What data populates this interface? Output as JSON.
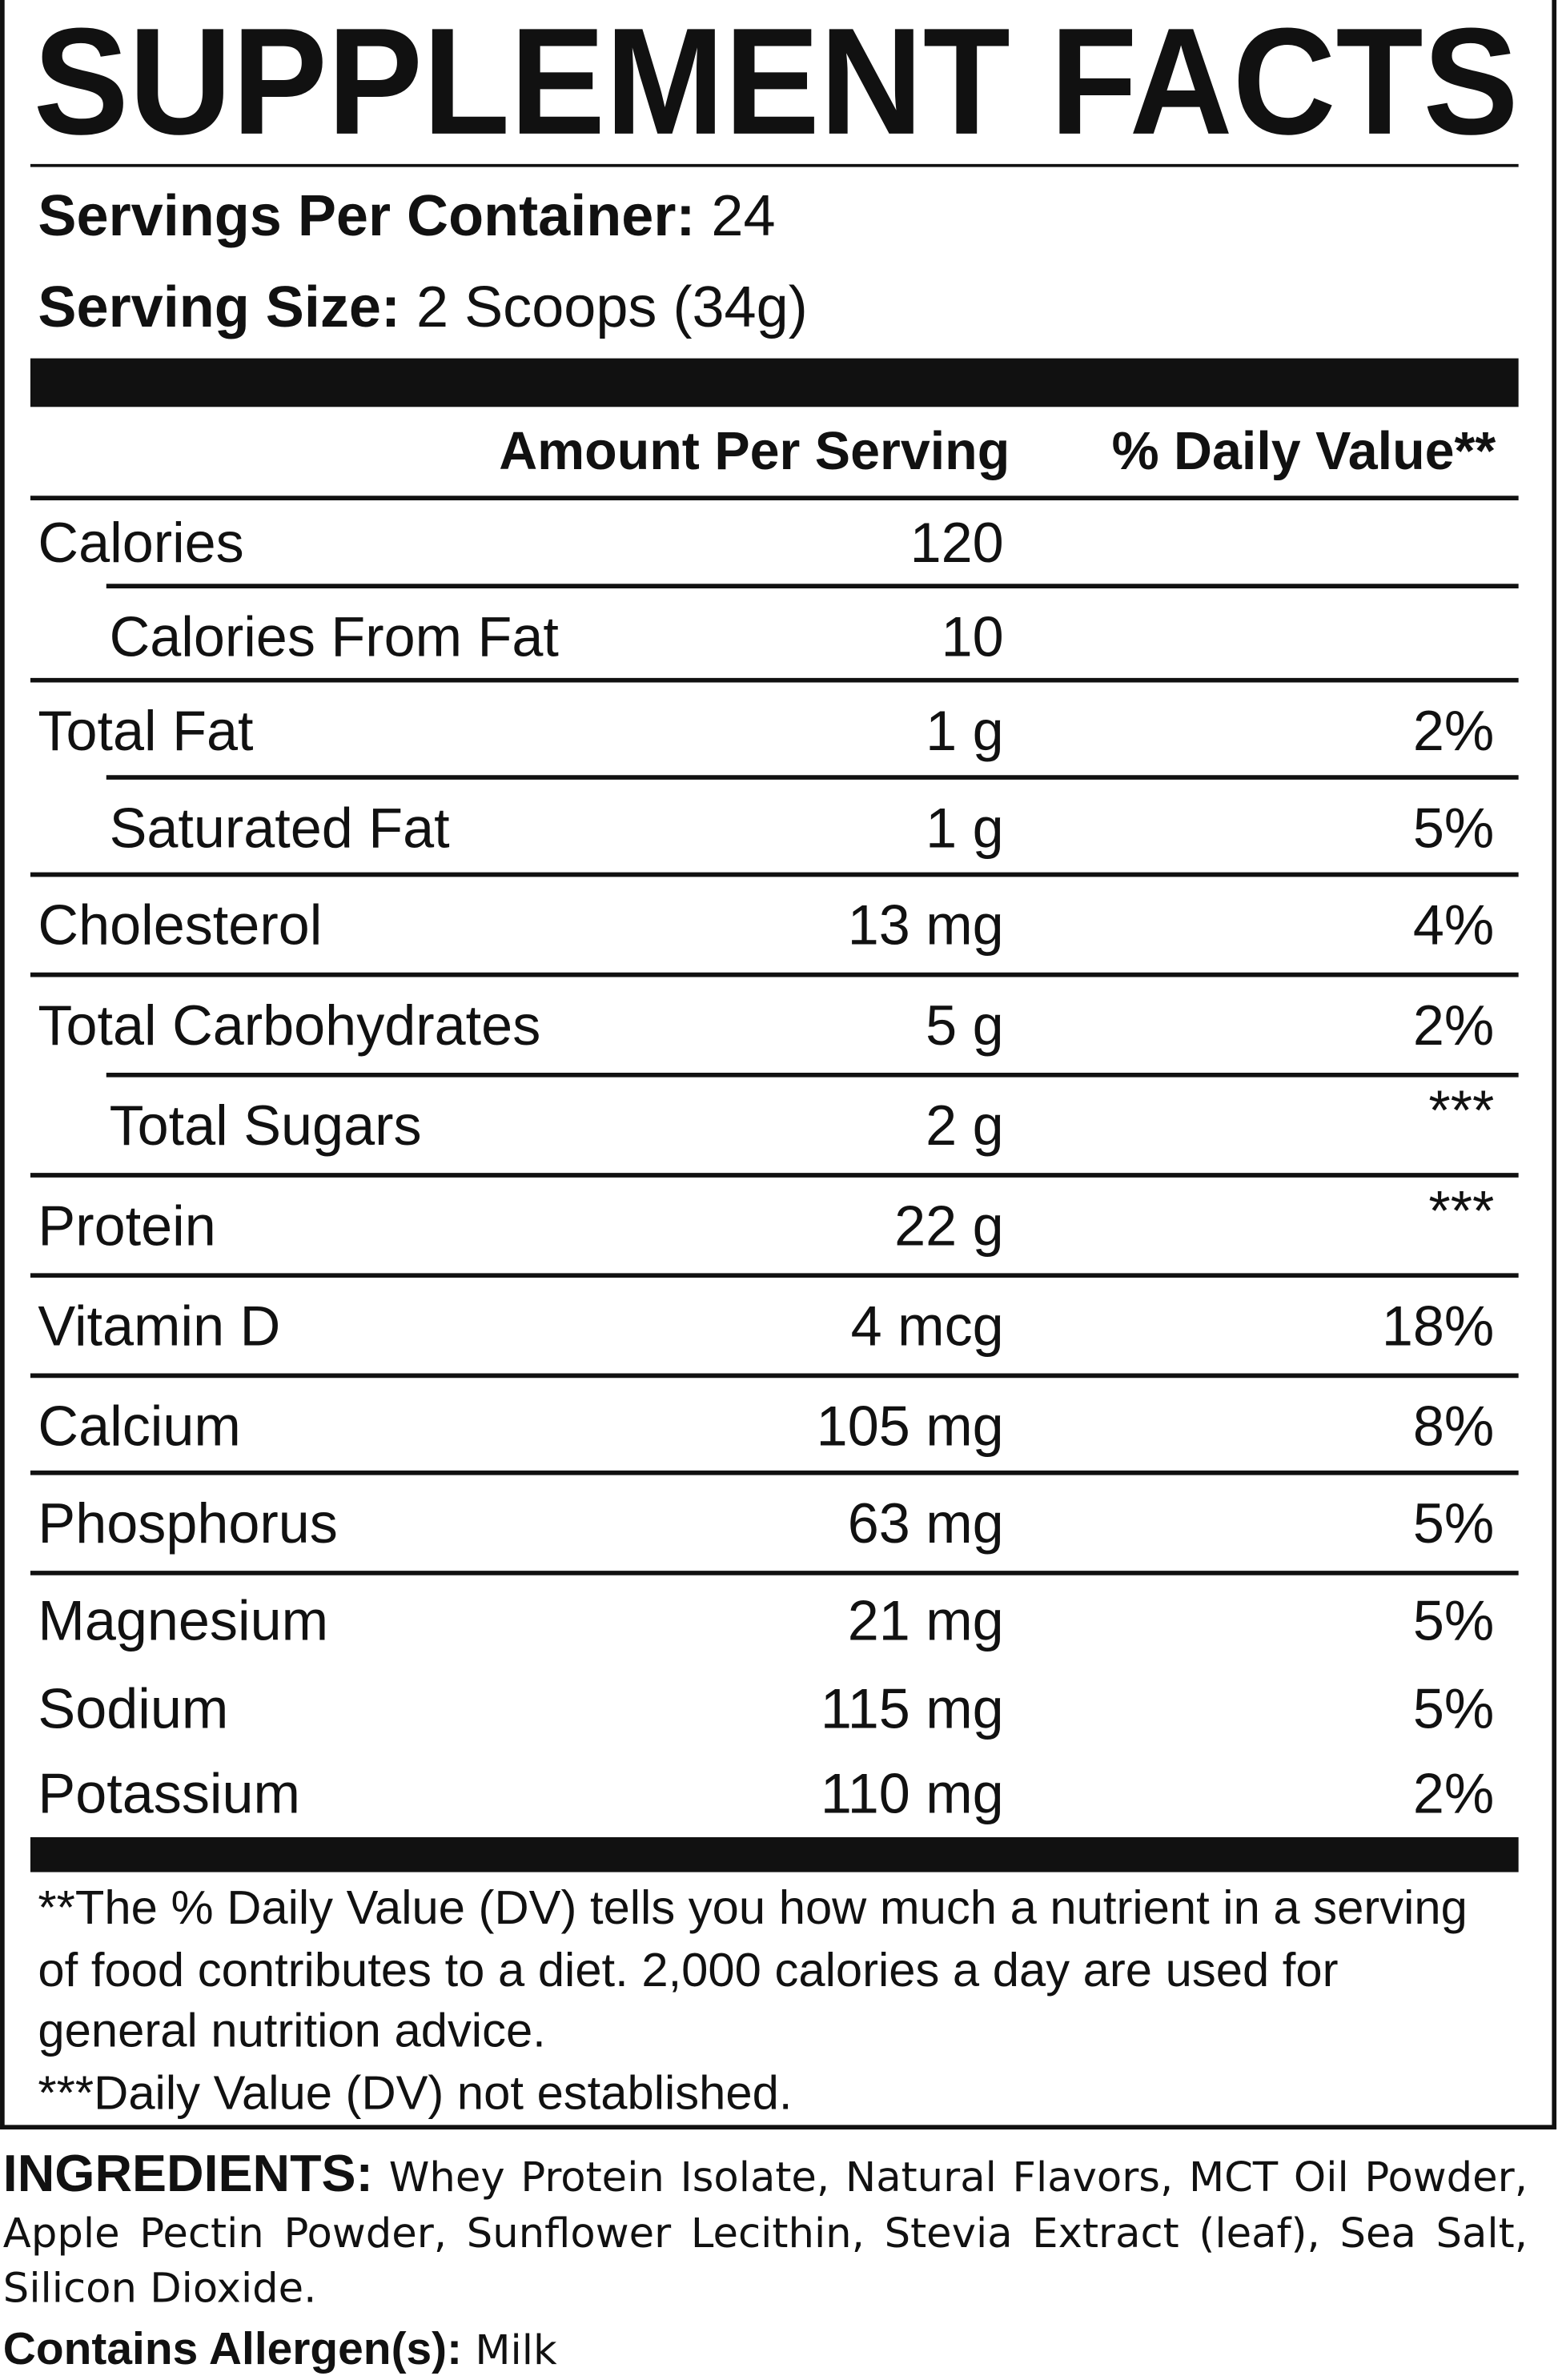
{
  "title": "SUPPLEMENT FACTS",
  "servings_per_container": {
    "label": "Servings Per Container:",
    "value": "24"
  },
  "serving_size": {
    "label": "Serving Size:",
    "value": "2 Scoops (34g)"
  },
  "header": {
    "amount": "Amount Per Serving",
    "daily_value": "% Daily Value**"
  },
  "rows": [
    {
      "name": "Calories",
      "amount": "120"
    },
    {
      "name": "Calories From Fat",
      "amount": "10",
      "indent": true
    },
    {
      "name": "Total Fat",
      "amount": "1 g",
      "dv": "2%"
    },
    {
      "name": "Saturated Fat",
      "amount": "1 g",
      "dv": "5%",
      "indent": true
    },
    {
      "name": "Cholesterol",
      "amount": "13 mg",
      "dv": "4%"
    },
    {
      "name": "Total Carbohydrates",
      "amount": "5 g",
      "dv": "2%"
    },
    {
      "name": "Total Sugars",
      "amount": "2 g",
      "dv": "***",
      "indent": true
    },
    {
      "name": "Protein",
      "amount": "22 g",
      "dv": "***"
    },
    {
      "name": "Vitamin D",
      "amount": "4 mcg",
      "dv": "18%"
    },
    {
      "name": "Calcium",
      "amount": "105 mg",
      "dv": "8%"
    },
    {
      "name": "Phosphorus",
      "amount": "63 mg",
      "dv": "5%"
    },
    {
      "name": "Magnesium",
      "amount": "21 mg",
      "dv": "5%"
    },
    {
      "name": "Sodium",
      "amount": "115 mg",
      "dv": "5%"
    },
    {
      "name": "Potassium",
      "amount": "110 mg",
      "dv": "2%"
    }
  ],
  "footnotes": [
    "**The % Daily Value (DV) tells you how much a nutrient in a serving of food contributes to a diet. 2,000 calories a day are used for general nutrition advice.",
    "***Daily Value (DV) not established."
  ],
  "ingredients": {
    "label": "INGREDIENTS:",
    "text": "Whey Protein Isolate, Natural Flavors, MCT Oil Powder, Apple Pectin Powder, Sunflower Lecithin, Stevia Extract (leaf), Sea Salt, Silicon Dioxide."
  },
  "allergens": {
    "label": "Contains Allergen(s):",
    "text": "Milk"
  }
}
